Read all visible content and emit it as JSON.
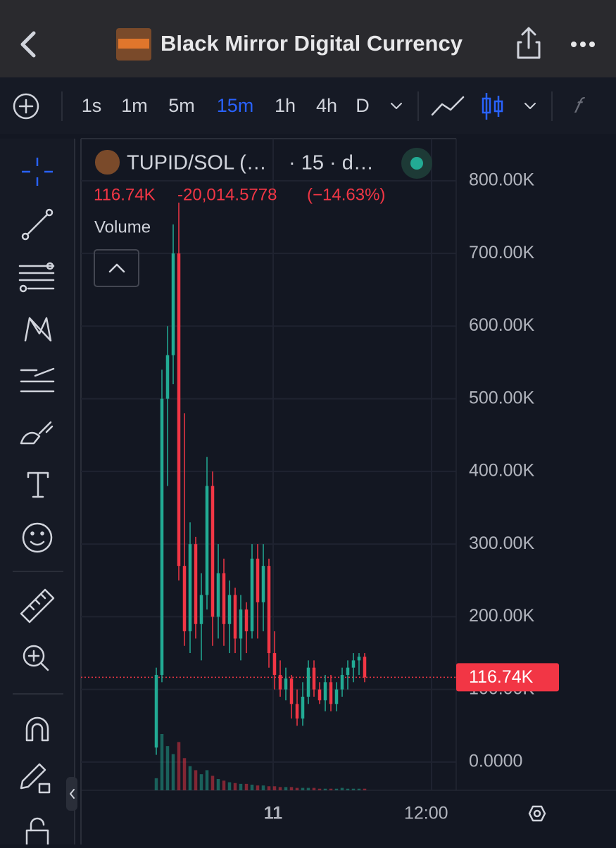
{
  "header": {
    "title": "Black Mirror Digital Currency"
  },
  "timeframes": [
    "1s",
    "1m",
    "5m",
    "15m",
    "1h",
    "4h",
    "D"
  ],
  "active_timeframe": "15m",
  "legend": {
    "symbol": "TUPID/SOL (…",
    "interval": "· 15 · d…",
    "last": "116.74K",
    "change": "-20,014.5778",
    "change_pct": "(−14.63%)",
    "study": "Volume"
  },
  "chart_data": {
    "type": "candlestick",
    "open": [
      20000,
      120000,
      500000,
      560000,
      700000,
      270000,
      180000,
      300000,
      190000,
      230000,
      380000,
      200000,
      260000,
      190000,
      230000,
      170000,
      210000,
      180000,
      280000,
      220000,
      270000,
      150000,
      120000,
      100000,
      115000,
      80000,
      60000,
      90000,
      130000,
      100000,
      85000,
      110000,
      80000,
      100000,
      120000,
      130000,
      140000,
      145000
    ],
    "high": [
      130000,
      540000,
      600000,
      740000,
      770000,
      480000,
      330000,
      310000,
      260000,
      420000,
      400000,
      300000,
      280000,
      250000,
      240000,
      230000,
      220000,
      300000,
      300000,
      300000,
      280000,
      180000,
      140000,
      130000,
      120000,
      100000,
      110000,
      140000,
      140000,
      110000,
      120000,
      120000,
      110000,
      130000,
      140000,
      150000,
      150000,
      150000
    ],
    "low": [
      10000,
      110000,
      380000,
      520000,
      250000,
      160000,
      150000,
      170000,
      140000,
      210000,
      160000,
      170000,
      160000,
      150000,
      150000,
      140000,
      150000,
      170000,
      170000,
      180000,
      130000,
      100000,
      90000,
      85000,
      60000,
      50000,
      50000,
      80000,
      90000,
      80000,
      70000,
      70000,
      70000,
      90000,
      100000,
      110000,
      120000,
      110000
    ],
    "close": [
      120000,
      500000,
      560000,
      700000,
      270000,
      180000,
      300000,
      190000,
      230000,
      380000,
      200000,
      260000,
      190000,
      230000,
      170000,
      210000,
      180000,
      280000,
      220000,
      270000,
      150000,
      120000,
      100000,
      115000,
      80000,
      60000,
      90000,
      130000,
      100000,
      85000,
      110000,
      80000,
      100000,
      120000,
      130000,
      140000,
      145000,
      116740
    ],
    "volume": [
      15,
      70,
      55,
      45,
      60,
      40,
      30,
      25,
      20,
      25,
      18,
      14,
      12,
      10,
      9,
      8,
      8,
      7,
      6,
      6,
      5,
      5,
      4,
      4,
      4,
      3,
      3,
      3,
      3,
      2,
      2,
      2,
      2,
      3,
      2,
      2,
      2,
      2
    ],
    "up_color": "#22ab94",
    "down_color": "#f23645",
    "ylim": [
      -38800,
      858000
    ],
    "yticks": [
      {
        "value": 0,
        "label": "0.0000"
      },
      {
        "value": 100000,
        "label": "100.00K"
      },
      {
        "value": 200000,
        "label": "200.00K"
      },
      {
        "value": 300000,
        "label": "300.00K"
      },
      {
        "value": 400000,
        "label": "400.00K"
      },
      {
        "value": 500000,
        "label": "500.00K"
      },
      {
        "value": 600000,
        "label": "600.00K"
      },
      {
        "value": 700000,
        "label": "700.00K"
      },
      {
        "value": 800000,
        "label": "800.00K"
      }
    ],
    "x_labels": [
      "11",
      "12:00"
    ],
    "last_price": {
      "value": 116740,
      "label": "116.74K"
    },
    "grid": true
  }
}
